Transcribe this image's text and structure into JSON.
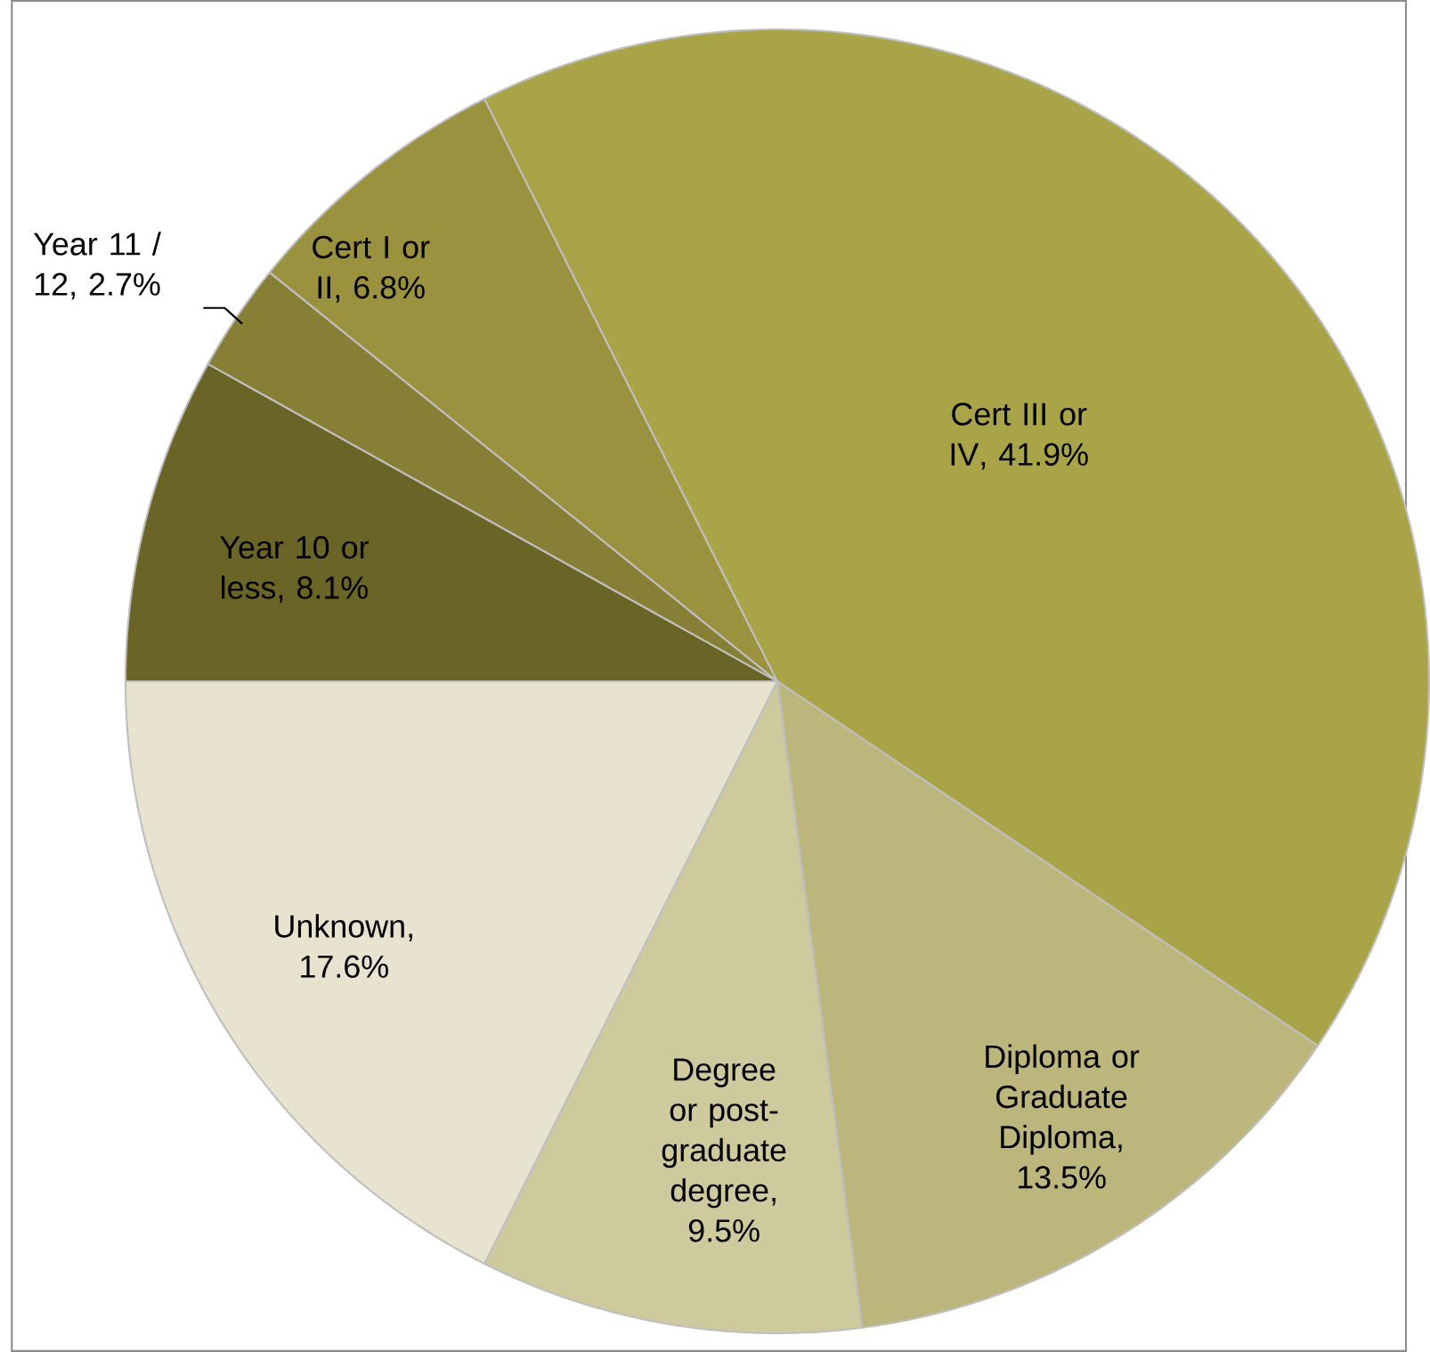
{
  "chart_data": {
    "type": "pie",
    "categories": [
      "Year 10 or less",
      "Year 11 / 12",
      "Cert I or II",
      "Cert III or IV",
      "Diploma or Graduate Diploma",
      "Degree or post-graduate degree",
      "Unknown"
    ],
    "values": [
      8.1,
      2.7,
      6.8,
      41.9,
      13.5,
      9.5,
      17.6
    ],
    "value_labels": [
      ", 8.1%",
      ", 2.7%",
      ", 6.8%",
      ", 41.9%",
      ", 13.5%",
      ", 9.5%",
      ", 17.6%"
    ],
    "colors": [
      "#6b6427",
      "#877f35",
      "#9a923f",
      "#aaa448",
      "#bdb67c",
      "#cfc99e",
      "#e7e3cf"
    ]
  }
}
